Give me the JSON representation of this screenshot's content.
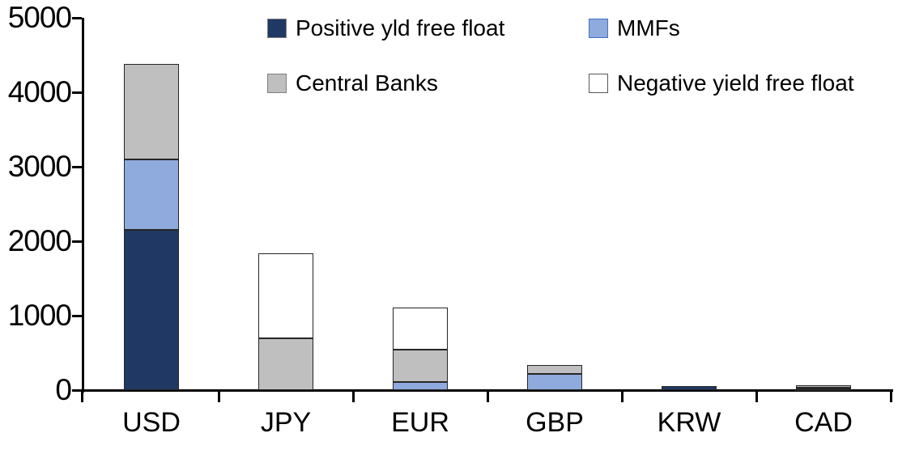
{
  "chart_data": {
    "type": "bar",
    "stacked": true,
    "title": "",
    "xlabel": "",
    "ylabel": "",
    "categories": [
      "USD",
      "JPY",
      "EUR",
      "GBP",
      "KRW",
      "CAD"
    ],
    "series": [
      {
        "name": "Positive yld free float",
        "color": "#1F3864",
        "swatch_border": "#7F7F7F",
        "values": [
          2150,
          0,
          0,
          0,
          55,
          10
        ]
      },
      {
        "name": "MMFs",
        "color": "#8FAADC",
        "swatch_border": "#4472C4",
        "values": [
          950,
          0,
          110,
          215,
          0,
          20
        ]
      },
      {
        "name": "Central Banks",
        "color": "#BFBFBF",
        "swatch_border": "#7F7F7F",
        "values": [
          1280,
          700,
          430,
          125,
          0,
          40
        ]
      },
      {
        "name": "Negative yield free float",
        "color": "#FFFFFF",
        "swatch_border": "#595959",
        "values": [
          0,
          1140,
          570,
          0,
          0,
          0
        ]
      }
    ],
    "totals": [
      4380,
      1840,
      1110,
      340,
      55,
      70
    ],
    "ylim": [
      0,
      5000
    ],
    "yticks": [
      0,
      1000,
      2000,
      3000,
      4000,
      5000
    ],
    "grid": false,
    "legend_position": "top",
    "legend_columns": 2,
    "axis_color": "#000000",
    "segment_border_color": "#262626"
  }
}
